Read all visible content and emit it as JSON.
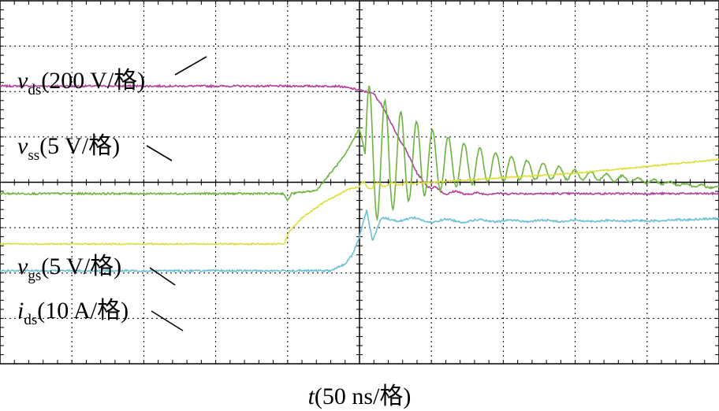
{
  "chart_data": {
    "type": "line",
    "grid": true,
    "grid_divisions": {
      "x": 10,
      "y": 8
    },
    "x_unit_label": "50 ns/格",
    "xlim": [
      0,
      10
    ],
    "ylim": [
      -4,
      4
    ],
    "xlabel": {
      "symbol": "t",
      "scale": "(50 ns/格)"
    },
    "series": [
      {
        "name": "vds",
        "symbol": "v",
        "subscript": "ds",
        "scale": "(200 V/格)",
        "color": "#b0409e",
        "points": [
          [
            0,
            2.12
          ],
          [
            4.7,
            2.12
          ],
          [
            4.95,
            2.05
          ],
          [
            5.2,
            1.95
          ],
          [
            5.35,
            1.6
          ],
          [
            5.5,
            1.1
          ],
          [
            5.65,
            0.7
          ],
          [
            5.8,
            0.2
          ],
          [
            5.95,
            -0.1
          ],
          [
            6.1,
            -0.2
          ],
          [
            6.5,
            -0.25
          ],
          [
            8,
            -0.25
          ],
          [
            10,
            -0.25
          ]
        ],
        "ringing": {
          "start": 6.0,
          "end": 9.9,
          "amplitude": 0.08,
          "period": 0.28,
          "decay": 2.5
        },
        "noise": 0.02
      },
      {
        "name": "vss",
        "symbol": "v",
        "subscript": "ss",
        "scale": "(5 V/格)",
        "color": "#6db33f",
        "points": [
          [
            0,
            -0.25
          ],
          [
            3.95,
            -0.25
          ],
          [
            4.0,
            -0.42
          ],
          [
            4.05,
            -0.25
          ],
          [
            4.4,
            -0.18
          ],
          [
            4.8,
            0.6
          ],
          [
            5.0,
            1.2
          ],
          [
            5.08,
            0.6
          ],
          [
            10,
            -0.12
          ]
        ],
        "ringing": {
          "start": 5.08,
          "end": 10,
          "amplitude": 1.6,
          "period": 0.22,
          "decay": 0.9
        },
        "noise": 0.02
      },
      {
        "name": "vgs",
        "symbol": "v",
        "subscript": "gs",
        "scale": "(5 V/格)",
        "color": "#dede3a",
        "points": [
          [
            0,
            -1.36
          ],
          [
            3.95,
            -1.36
          ],
          [
            4.02,
            -1.1
          ],
          [
            4.2,
            -0.78
          ],
          [
            4.5,
            -0.45
          ],
          [
            4.85,
            -0.15
          ],
          [
            5.0,
            -0.1
          ],
          [
            5.3,
            -0.05
          ],
          [
            6,
            0.0
          ],
          [
            7,
            0.1
          ],
          [
            8,
            0.2
          ],
          [
            9,
            0.35
          ],
          [
            10,
            0.5
          ]
        ],
        "ringing": {
          "start": 5.0,
          "end": 6.0,
          "amplitude": 0.12,
          "period": 0.2,
          "decay": 3
        },
        "noise": 0.015
      },
      {
        "name": "ids",
        "symbol": "i",
        "subscript": "ds",
        "scale": "(10 A/格)",
        "color": "#6bbfd6",
        "points": [
          [
            0,
            -1.95
          ],
          [
            4.6,
            -1.95
          ],
          [
            4.8,
            -1.8
          ],
          [
            4.9,
            -1.6
          ],
          [
            5.0,
            -1.2
          ],
          [
            5.1,
            -0.6
          ],
          [
            5.18,
            -1.3
          ],
          [
            5.3,
            -0.85
          ],
          [
            5.5,
            -0.8
          ],
          [
            6,
            -0.85
          ],
          [
            7,
            -0.85
          ],
          [
            8,
            -0.85
          ],
          [
            9,
            -0.85
          ],
          [
            10,
            -0.8
          ]
        ],
        "ringing": {
          "start": 5.2,
          "end": 10,
          "amplitude": 0.06,
          "period": 0.45,
          "decay": 0.6
        },
        "noise": 0.02
      }
    ]
  }
}
